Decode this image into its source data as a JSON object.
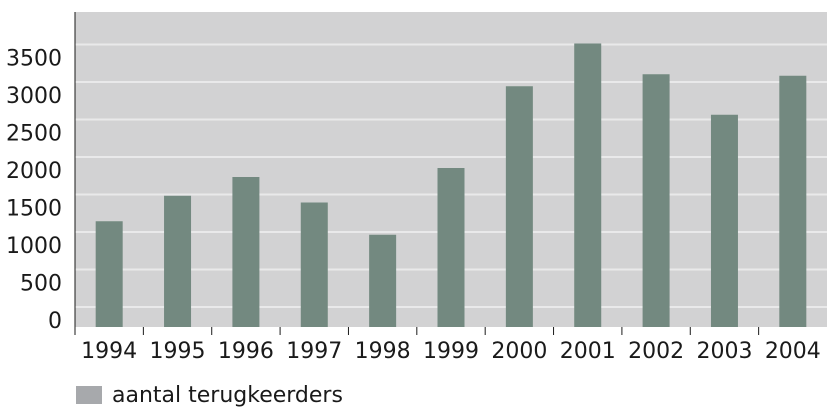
{
  "chart_data": {
    "type": "bar",
    "categories": [
      "1994",
      "1995",
      "1996",
      "1997",
      "1998",
      "1999",
      "2000",
      "2001",
      "2002",
      "2003",
      "2004"
    ],
    "series": [
      {
        "name": "aantal terugkeerders",
        "values": [
          1410,
          1750,
          2000,
          1660,
          1230,
          2120,
          3210,
          3780,
          3370,
          2830,
          3350
        ]
      }
    ],
    "ylim": [
      0,
      4200
    ],
    "yticks": [
      0,
      500,
      1000,
      1500,
      2000,
      2500,
      3000,
      3500
    ],
    "ytick_labels": [
      "0",
      "500",
      "1000",
      "1500",
      "2000",
      "2500",
      "3000",
      "3500"
    ],
    "grid": true,
    "legend": "bottom-left",
    "colors": {
      "bar": "#738980",
      "plot_bg": "#d2d2d3",
      "grid": "#e9e9ea",
      "legend_swatch": "#a7a9ac"
    }
  }
}
